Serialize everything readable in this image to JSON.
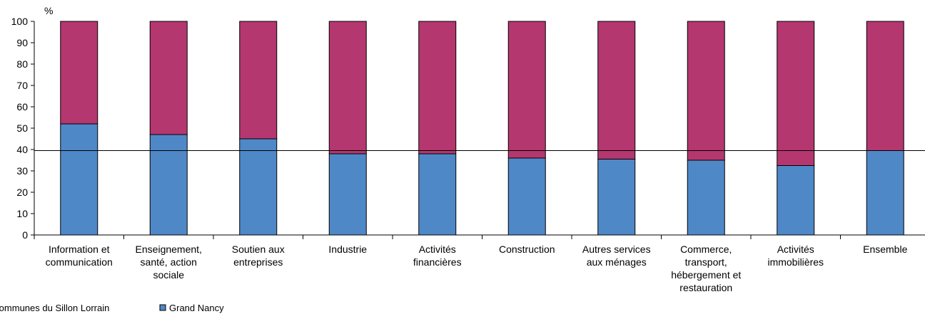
{
  "chart_data": {
    "type": "bar",
    "stacked": true,
    "unit_label": "%",
    "ylim": [
      0,
      100
    ],
    "yticks": [
      0,
      10,
      20,
      30,
      40,
      50,
      60,
      70,
      80,
      90,
      100
    ],
    "categories": [
      [
        "Information et",
        "communication"
      ],
      [
        "Enseignement,",
        "santé, action",
        "sociale"
      ],
      [
        "Soutien aux",
        "entreprises"
      ],
      [
        "Industrie"
      ],
      [
        "Activités",
        "financières"
      ],
      [
        "Construction"
      ],
      [
        "Autres services",
        "aux ménages"
      ],
      [
        "Commerce,",
        "transport,",
        "hébergement et",
        "restauration"
      ],
      [
        "Activités",
        "immobilières"
      ],
      [
        "Ensemble"
      ]
    ],
    "series": [
      {
        "name": "Grand Nancy",
        "color": "#4f88c7",
        "values": [
          52,
          47,
          45,
          38,
          38,
          36,
          35.5,
          35,
          32.5,
          39.5
        ]
      },
      {
        "name": "Autres communes du Sillon Lorrain",
        "color": "#b5376f",
        "values": [
          48,
          53,
          55,
          62,
          62,
          64,
          64.5,
          65,
          67.5,
          60.5
        ]
      }
    ],
    "reference_line": 39.5,
    "legend": {
      "placement": "bottom-left",
      "items": [
        "Autres communes du Sillon Lorrain",
        "Grand Nancy"
      ]
    }
  }
}
